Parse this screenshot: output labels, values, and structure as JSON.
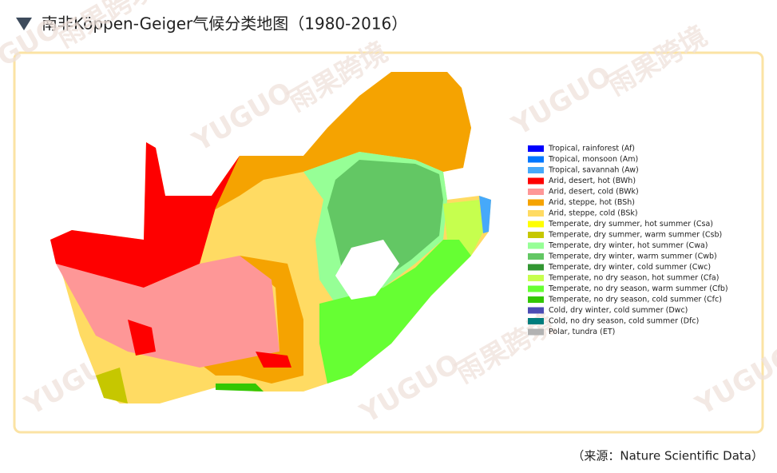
{
  "title": "南非Köppen-Geiger气候分类地图（1980-2016）",
  "source": "（来源：Nature Scientific Data）",
  "watermark": [
    "YUGUO",
    "雨果跨境"
  ],
  "legend": [
    {
      "label": "Tropical, rainforest (Af)",
      "color": "#0000fe"
    },
    {
      "label": "Tropical, monsoon (Am)",
      "color": "#0077ff"
    },
    {
      "label": "Tropical, savannah (Aw)",
      "color": "#46a9fa"
    },
    {
      "label": "Arid, desert, hot (BWh)",
      "color": "#fe0000"
    },
    {
      "label": "Arid, desert, cold (BWk)",
      "color": "#fe9797"
    },
    {
      "label": "Arid, steppe, hot (BSh)",
      "color": "#f5a301"
    },
    {
      "label": "Arid, steppe, cold (BSk)",
      "color": "#ffdb63"
    },
    {
      "label": "Temperate, dry summer, hot summer (Csa)",
      "color": "#ffff00"
    },
    {
      "label": "Temperate, dry summer, warm summer (Csb)",
      "color": "#c6c700"
    },
    {
      "label": "Temperate, dry winter, hot summer (Cwa)",
      "color": "#96ff96"
    },
    {
      "label": "Temperate, dry winter, warm summer (Cwb)",
      "color": "#63c764"
    },
    {
      "label": "Temperate, dry winter, cold summer (Cwc)",
      "color": "#329632"
    },
    {
      "label": "Temperate, no dry season, hot summer (Cfa)",
      "color": "#c6ff4e"
    },
    {
      "label": "Temperate, no dry season, warm summer (Cfb)",
      "color": "#66ff33"
    },
    {
      "label": "Temperate, no dry season, cold summer (Cfc)",
      "color": "#33c701"
    },
    {
      "label": "Cold, dry winter, cold summer (Dwc)",
      "color": "#4c4cb4"
    },
    {
      "label": "Cold, no dry season, cold summer (Dfc)",
      "color": "#007d7d"
    },
    {
      "label": "Polar, tundra (ET)",
      "color": "#b2b2b2"
    }
  ]
}
